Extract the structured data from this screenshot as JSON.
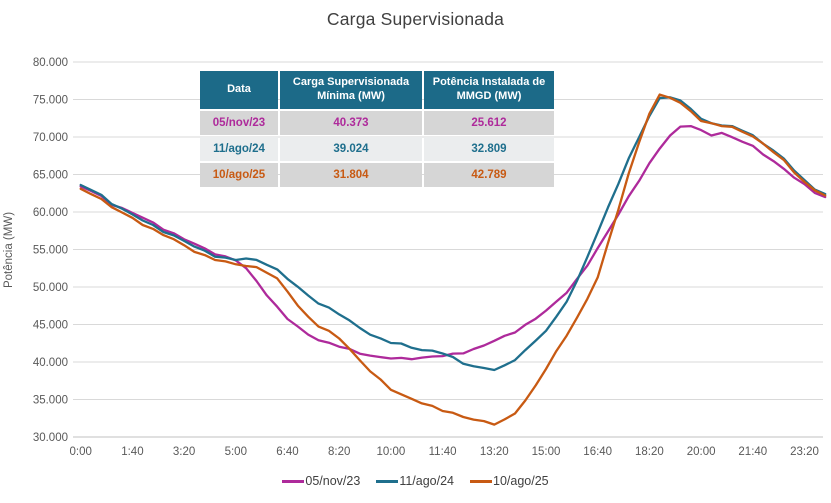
{
  "title": "Carga Supervisionada",
  "colors": {
    "magenta": "#ae2a9b",
    "teal": "#1f6f8d",
    "orange": "#c85a13",
    "table_header_bg": "#1c6a88",
    "table_header_text": "#ffffff",
    "row_alt_bg": "#d6d6d6",
    "row_light_bg": "#ebedee",
    "grid": "#d9d9d9",
    "axis_line": "#c0c0c0",
    "axis_text": "#595959",
    "title_text": "#404040"
  },
  "table": {
    "headers": [
      "Data",
      "Carga Supervisionada Mínima (MW)",
      "Potência Instalada de MMGD (MW)"
    ],
    "rows": [
      {
        "data": "05/nov/23",
        "carga_minima": "40.373",
        "potencia_mmgd": "25.612",
        "color_key": "magenta"
      },
      {
        "data": "11/ago/24",
        "carga_minima": "39.024",
        "potencia_mmgd": "32.809",
        "color_key": "teal"
      },
      {
        "data": "10/ago/25",
        "carga_minima": "31.804",
        "potencia_mmgd": "42.789",
        "color_key": "orange"
      }
    ]
  },
  "chart_data": {
    "type": "line",
    "title": "Carga Supervisionada",
    "xlabel": "",
    "ylabel": "Potência (MW)",
    "ylim": [
      30000,
      80000
    ],
    "grid": "horizontal",
    "legend_position": "bottom",
    "y_ticks": [
      {
        "v": 80000,
        "label": "80.000"
      },
      {
        "v": 75000,
        "label": "75.000"
      },
      {
        "v": 70000,
        "label": "70.000"
      },
      {
        "v": 65000,
        "label": "65.000"
      },
      {
        "v": 60000,
        "label": "60.000"
      },
      {
        "v": 55000,
        "label": "55.000"
      },
      {
        "v": 50000,
        "label": "50.000"
      },
      {
        "v": 45000,
        "label": "45.000"
      },
      {
        "v": 40000,
        "label": "40.000"
      },
      {
        "v": 35000,
        "label": "35.000"
      },
      {
        "v": 30000,
        "label": "30.000"
      }
    ],
    "x_ticks": [
      {
        "t": 0,
        "label": "0:00"
      },
      {
        "t": 100,
        "label": "1:40"
      },
      {
        "t": 200,
        "label": "3:20"
      },
      {
        "t": 300,
        "label": "5:00"
      },
      {
        "t": 400,
        "label": "6:40"
      },
      {
        "t": 500,
        "label": "8:20"
      },
      {
        "t": 600,
        "label": "10:00"
      },
      {
        "t": 700,
        "label": "11:40"
      },
      {
        "t": 800,
        "label": "13:20"
      },
      {
        "t": 900,
        "label": "15:00"
      },
      {
        "t": 1000,
        "label": "16:40"
      },
      {
        "t": 1100,
        "label": "18:20"
      },
      {
        "t": 1200,
        "label": "20:00"
      },
      {
        "t": 1300,
        "label": "21:40"
      },
      {
        "t": 1400,
        "label": "23:20"
      }
    ],
    "x_minutes": [
      0,
      20,
      40,
      60,
      80,
      100,
      120,
      140,
      160,
      180,
      200,
      220,
      240,
      260,
      280,
      300,
      320,
      340,
      360,
      380,
      400,
      420,
      440,
      460,
      480,
      500,
      520,
      540,
      560,
      580,
      600,
      620,
      640,
      660,
      680,
      700,
      720,
      740,
      760,
      780,
      800,
      820,
      840,
      860,
      880,
      900,
      920,
      940,
      960,
      980,
      1000,
      1020,
      1040,
      1060,
      1080,
      1100,
      1120,
      1140,
      1160,
      1180,
      1200,
      1220,
      1240,
      1260,
      1280,
      1300,
      1320,
      1340,
      1360,
      1380,
      1400,
      1420,
      1440
    ],
    "series": [
      {
        "name": "05/nov/23",
        "color_key": "magenta",
        "min_mw": 40373,
        "values": [
          63400,
          62800,
          62000,
          61100,
          60500,
          59900,
          59200,
          58500,
          57800,
          57100,
          56400,
          55700,
          55100,
          54500,
          54000,
          53600,
          52400,
          50800,
          49000,
          47300,
          45800,
          44600,
          43700,
          43000,
          42500,
          42100,
          41600,
          41200,
          40900,
          40600,
          40500,
          40400,
          40500,
          40600,
          40700,
          40800,
          41000,
          41300,
          41700,
          42200,
          42800,
          43400,
          44100,
          44900,
          45800,
          46800,
          48000,
          49400,
          51000,
          52900,
          55100,
          57400,
          59800,
          62000,
          64200,
          66400,
          68500,
          70300,
          71300,
          71500,
          70800,
          70300,
          70600,
          69900,
          69400,
          68700,
          67800,
          66800,
          65700,
          64600,
          63600,
          62700,
          62000
        ]
      },
      {
        "name": "11/ago/24",
        "color_key": "teal",
        "min_mw": 39024,
        "values": [
          63600,
          63000,
          62200,
          61200,
          60400,
          59600,
          58900,
          58200,
          57500,
          56800,
          56100,
          55400,
          54800,
          54200,
          53800,
          53600,
          53800,
          53600,
          53100,
          52200,
          51100,
          50000,
          48900,
          47900,
          47100,
          46400,
          45500,
          44600,
          43700,
          43000,
          42600,
          42400,
          42000,
          41600,
          41400,
          41200,
          40600,
          39900,
          39400,
          39100,
          39000,
          39500,
          40400,
          41500,
          42800,
          44200,
          46000,
          48200,
          50700,
          54000,
          57300,
          60600,
          63900,
          67000,
          70000,
          72800,
          75200,
          75400,
          74700,
          73800,
          72400,
          71900,
          71600,
          71300,
          70900,
          70200,
          69200,
          68200,
          67000,
          65600,
          64200,
          63100,
          62400
        ]
      },
      {
        "name": "10/ago/25",
        "color_key": "orange",
        "min_mw": 31804,
        "values": [
          63100,
          62500,
          61700,
          60700,
          59900,
          59100,
          58400,
          57700,
          57000,
          56300,
          55500,
          54800,
          54200,
          53700,
          53300,
          53000,
          52900,
          52600,
          52000,
          51000,
          49400,
          47600,
          46000,
          44800,
          44000,
          43200,
          41800,
          40200,
          38800,
          37500,
          36400,
          35700,
          35100,
          34500,
          34000,
          33600,
          33200,
          32700,
          32300,
          32000,
          31800,
          32300,
          33200,
          34800,
          36800,
          39200,
          41400,
          43600,
          45800,
          48400,
          51400,
          55800,
          60400,
          65000,
          69300,
          73200,
          75600,
          75300,
          74400,
          73500,
          72200,
          71800,
          71500,
          71200,
          70800,
          70100,
          69100,
          68000,
          66800,
          65400,
          64000,
          62900,
          62200
        ]
      }
    ]
  }
}
